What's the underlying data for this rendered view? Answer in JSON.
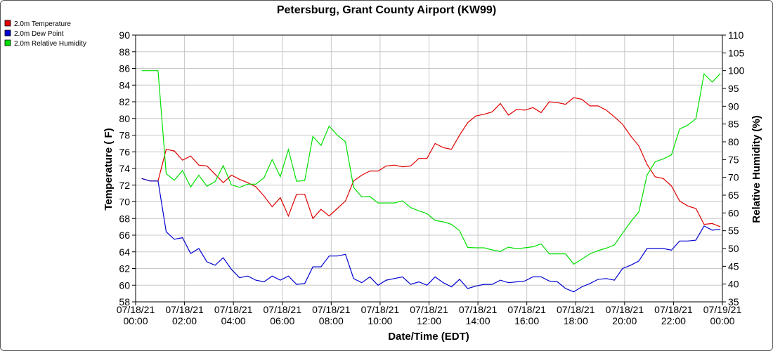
{
  "chart_data": {
    "type": "line",
    "title": "Petersburg, Grant County Airport (KW99)",
    "xlabel": "Date/Time (EDT)",
    "ylabel": "Temperature ( F)",
    "y2label": "Relative Humidity (%)",
    "xlim": [
      "07/18/21 00:00",
      "07/19/21 00:00"
    ],
    "ylim": [
      58,
      90
    ],
    "y2lim": [
      35,
      110
    ],
    "x_ticks": [
      {
        "date": "07/18/21",
        "time": "00:00"
      },
      {
        "date": "07/18/21",
        "time": "02:00"
      },
      {
        "date": "07/18/21",
        "time": "04:00"
      },
      {
        "date": "07/18/21",
        "time": "06:00"
      },
      {
        "date": "07/18/21",
        "time": "08:00"
      },
      {
        "date": "07/18/21",
        "time": "10:00"
      },
      {
        "date": "07/18/21",
        "time": "12:00"
      },
      {
        "date": "07/18/21",
        "time": "14:00"
      },
      {
        "date": "07/18/21",
        "time": "16:00"
      },
      {
        "date": "07/18/21",
        "time": "18:00"
      },
      {
        "date": "07/18/21",
        "time": "20:00"
      },
      {
        "date": "07/18/21",
        "time": "22:00"
      },
      {
        "date": "07/19/21",
        "time": "00:00"
      }
    ],
    "y_ticks": [
      58,
      60,
      62,
      64,
      66,
      68,
      70,
      72,
      74,
      76,
      78,
      80,
      82,
      84,
      86,
      88,
      90
    ],
    "y2_ticks": [
      35,
      40,
      45,
      50,
      55,
      60,
      65,
      70,
      75,
      80,
      85,
      90,
      95,
      100,
      105,
      110
    ],
    "grid": true,
    "legend_position": "top-left",
    "x": [
      "07/18/21 00:15",
      "07/18/21 00:35",
      "07/18/21 00:55",
      "07/18/21 01:15",
      "07/18/21 01:35",
      "07/18/21 01:55",
      "07/18/21 02:15",
      "07/18/21 02:35",
      "07/18/21 02:55",
      "07/18/21 03:15",
      "07/18/21 03:35",
      "07/18/21 03:55",
      "07/18/21 04:15",
      "07/18/21 04:35",
      "07/18/21 04:55",
      "07/18/21 05:15",
      "07/18/21 05:35",
      "07/18/21 05:55",
      "07/18/21 06:15",
      "07/18/21 06:35",
      "07/18/21 06:55",
      "07/18/21 07:15",
      "07/18/21 07:35",
      "07/18/21 07:55",
      "07/18/21 08:15",
      "07/18/21 08:35",
      "07/18/21 08:55",
      "07/18/21 09:15",
      "07/18/21 09:35",
      "07/18/21 09:55",
      "07/18/21 10:15",
      "07/18/21 10:35",
      "07/18/21 10:55",
      "07/18/21 11:15",
      "07/18/21 11:35",
      "07/18/21 11:55",
      "07/18/21 12:15",
      "07/18/21 12:35",
      "07/18/21 12:55",
      "07/18/21 13:15",
      "07/18/21 13:35",
      "07/18/21 13:55",
      "07/18/21 14:15",
      "07/18/21 14:35",
      "07/18/21 14:55",
      "07/18/21 15:15",
      "07/18/21 15:35",
      "07/18/21 15:55",
      "07/18/21 16:15",
      "07/18/21 16:35",
      "07/18/21 16:55",
      "07/18/21 17:15",
      "07/18/21 17:35",
      "07/18/21 17:55",
      "07/18/21 18:15",
      "07/18/21 18:35",
      "07/18/21 18:55",
      "07/18/21 19:15",
      "07/18/21 19:35",
      "07/18/21 19:55",
      "07/18/21 20:15",
      "07/18/21 20:35",
      "07/18/21 20:55",
      "07/18/21 21:15",
      "07/18/21 21:35",
      "07/18/21 21:55",
      "07/18/21 22:15",
      "07/18/21 22:35",
      "07/18/21 22:55",
      "07/18/21 23:15",
      "07/18/21 23:35",
      "07/18/21 23:55"
    ],
    "series": [
      {
        "name": "2.0m Temperature",
        "color": "#e00000",
        "axis": "left",
        "values": [
          72.8,
          72.5,
          72.5,
          76.3,
          76.1,
          75.0,
          75.5,
          74.4,
          74.3,
          73.3,
          72.3,
          73.2,
          72.7,
          72.3,
          71.8,
          70.7,
          69.4,
          70.5,
          68.3,
          70.9,
          70.9,
          68.0,
          69.1,
          68.3,
          69.2,
          70.1,
          72.5,
          73.2,
          73.7,
          73.7,
          74.3,
          74.4,
          74.2,
          74.3,
          75.2,
          75.2,
          77.0,
          76.5,
          76.3,
          78.0,
          79.5,
          80.3,
          80.5,
          80.8,
          81.8,
          80.4,
          81.1,
          81.0,
          81.3,
          80.7,
          82.0,
          81.9,
          81.7,
          82.5,
          82.3,
          81.5,
          81.5,
          81.0,
          80.2,
          79.3,
          77.9,
          76.7,
          74.5,
          73.0,
          72.8,
          71.9,
          70.1,
          69.5,
          69.2,
          67.3,
          67.4,
          67.0
        ]
      },
      {
        "name": "2.0m Dew Point",
        "color": "#0000d0",
        "axis": "left",
        "values": [
          72.8,
          72.5,
          72.5,
          66.4,
          65.5,
          65.7,
          63.8,
          64.4,
          62.8,
          62.4,
          63.3,
          61.9,
          60.9,
          61.1,
          60.6,
          60.4,
          61.1,
          60.6,
          61.1,
          60.1,
          60.2,
          62.2,
          62.2,
          63.5,
          63.5,
          63.7,
          60.8,
          60.3,
          61.0,
          60.0,
          60.6,
          60.8,
          61.0,
          60.1,
          60.4,
          60.0,
          61.0,
          60.3,
          59.8,
          60.7,
          59.6,
          59.9,
          60.1,
          60.1,
          60.6,
          60.3,
          60.4,
          60.5,
          61.0,
          61.0,
          60.5,
          60.4,
          59.6,
          59.2,
          59.8,
          60.2,
          60.7,
          60.8,
          60.6,
          62.0,
          62.4,
          62.9,
          64.4,
          64.4,
          64.4,
          64.2,
          65.3,
          65.3,
          65.4,
          67.1,
          66.6,
          66.7
        ]
      },
      {
        "name": "2.0m Relative Humidity",
        "color": "#00e000",
        "axis": "right",
        "values": [
          100,
          100,
          100,
          71.0,
          69.2,
          71.9,
          67.3,
          70.6,
          67.5,
          68.8,
          73.3,
          67.9,
          67.2,
          68.1,
          68.1,
          69.9,
          75.0,
          70.2,
          77.8,
          68.9,
          69.1,
          81.5,
          79.0,
          84.4,
          81.9,
          80.0,
          67.2,
          64.5,
          64.6,
          62.8,
          62.8,
          62.8,
          63.4,
          61.5,
          60.6,
          59.8,
          57.9,
          57.5,
          56.8,
          55.0,
          50.3,
          50.2,
          50.2,
          49.6,
          49.2,
          50.4,
          49.9,
          50.2,
          50.5,
          51.3,
          48.5,
          48.5,
          48.5,
          45.6,
          47.0,
          48.5,
          49.4,
          50.1,
          51.0,
          54.3,
          57.5,
          60.3,
          70.6,
          74.4,
          75.2,
          76.3,
          83.6,
          84.7,
          86.5,
          99.1,
          96.8,
          99.2
        ]
      }
    ]
  }
}
